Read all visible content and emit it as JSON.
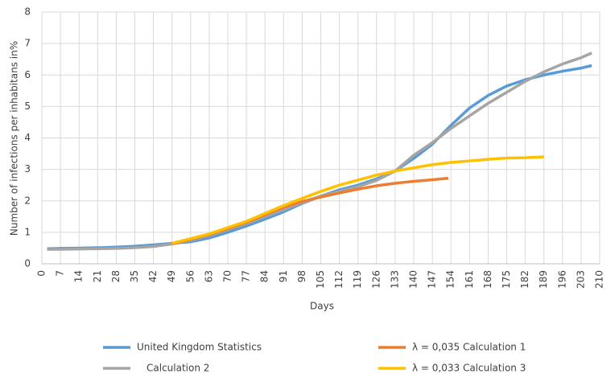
{
  "chart_data": {
    "type": "line",
    "x_label": "Days",
    "y_label": "Number of infections per inhabitans in%",
    "xlim": [
      0,
      210
    ],
    "xticks": [
      0,
      7,
      14,
      21,
      28,
      35,
      42,
      49,
      56,
      63,
      70,
      77,
      84,
      91,
      98,
      105,
      112,
      119,
      126,
      133,
      140,
      147,
      154,
      161,
      168,
      175,
      182,
      189,
      196,
      203,
      210
    ],
    "ylim": [
      0,
      8
    ],
    "yticks": [
      0,
      1,
      2,
      3,
      4,
      5,
      6,
      7,
      8
    ],
    "grid": true,
    "legend": "bottom",
    "series": [
      {
        "name": "United Kingdom Statistics",
        "color": "#5b9bd5",
        "x": [
          2,
          7,
          14,
          21,
          28,
          35,
          42,
          49,
          56,
          63,
          70,
          77,
          84,
          91,
          98,
          105,
          112,
          119,
          126,
          133,
          140,
          147,
          154,
          161,
          168,
          175,
          182,
          189,
          196,
          203,
          207
        ],
        "values": [
          0.48,
          0.49,
          0.5,
          0.51,
          0.53,
          0.56,
          0.6,
          0.65,
          0.7,
          0.82,
          1.0,
          1.2,
          1.42,
          1.65,
          1.92,
          2.15,
          2.35,
          2.5,
          2.7,
          2.95,
          3.35,
          3.8,
          4.4,
          4.95,
          5.35,
          5.65,
          5.85,
          6.0,
          6.12,
          6.22,
          6.3
        ]
      },
      {
        "name": "Calculation 2",
        "color": "#a5a5a5",
        "x": [
          2,
          7,
          14,
          21,
          28,
          35,
          42,
          49,
          56,
          63,
          70,
          77,
          84,
          91,
          98,
          105,
          112,
          119,
          126,
          133,
          140,
          147,
          154,
          161,
          168,
          175,
          182,
          189,
          196,
          203,
          207
        ],
        "values": [
          0.46,
          0.46,
          0.47,
          0.48,
          0.49,
          0.51,
          0.55,
          0.63,
          0.75,
          0.9,
          1.08,
          1.28,
          1.5,
          1.72,
          1.95,
          2.15,
          2.3,
          2.45,
          2.65,
          2.95,
          3.45,
          3.85,
          4.3,
          4.7,
          5.1,
          5.45,
          5.8,
          6.1,
          6.35,
          6.55,
          6.7
        ]
      },
      {
        "name": "λ = 0,035 Calculation 1",
        "color": "#ed7d31",
        "x": [
          49,
          56,
          63,
          70,
          77,
          84,
          91,
          98,
          105,
          112,
          119,
          126,
          133,
          140,
          147,
          153
        ],
        "values": [
          0.63,
          0.78,
          0.93,
          1.12,
          1.32,
          1.56,
          1.8,
          1.98,
          2.12,
          2.25,
          2.37,
          2.48,
          2.56,
          2.62,
          2.67,
          2.72
        ]
      },
      {
        "name": "λ = 0,033 Calculation 3",
        "color": "#ffc000",
        "x": [
          49,
          56,
          63,
          70,
          77,
          84,
          91,
          98,
          105,
          112,
          119,
          126,
          133,
          140,
          147,
          154,
          161,
          168,
          175,
          182,
          189
        ],
        "values": [
          0.65,
          0.8,
          0.95,
          1.15,
          1.35,
          1.6,
          1.85,
          2.08,
          2.3,
          2.5,
          2.66,
          2.82,
          2.95,
          3.05,
          3.15,
          3.22,
          3.27,
          3.32,
          3.36,
          3.37,
          3.4
        ]
      }
    ]
  }
}
